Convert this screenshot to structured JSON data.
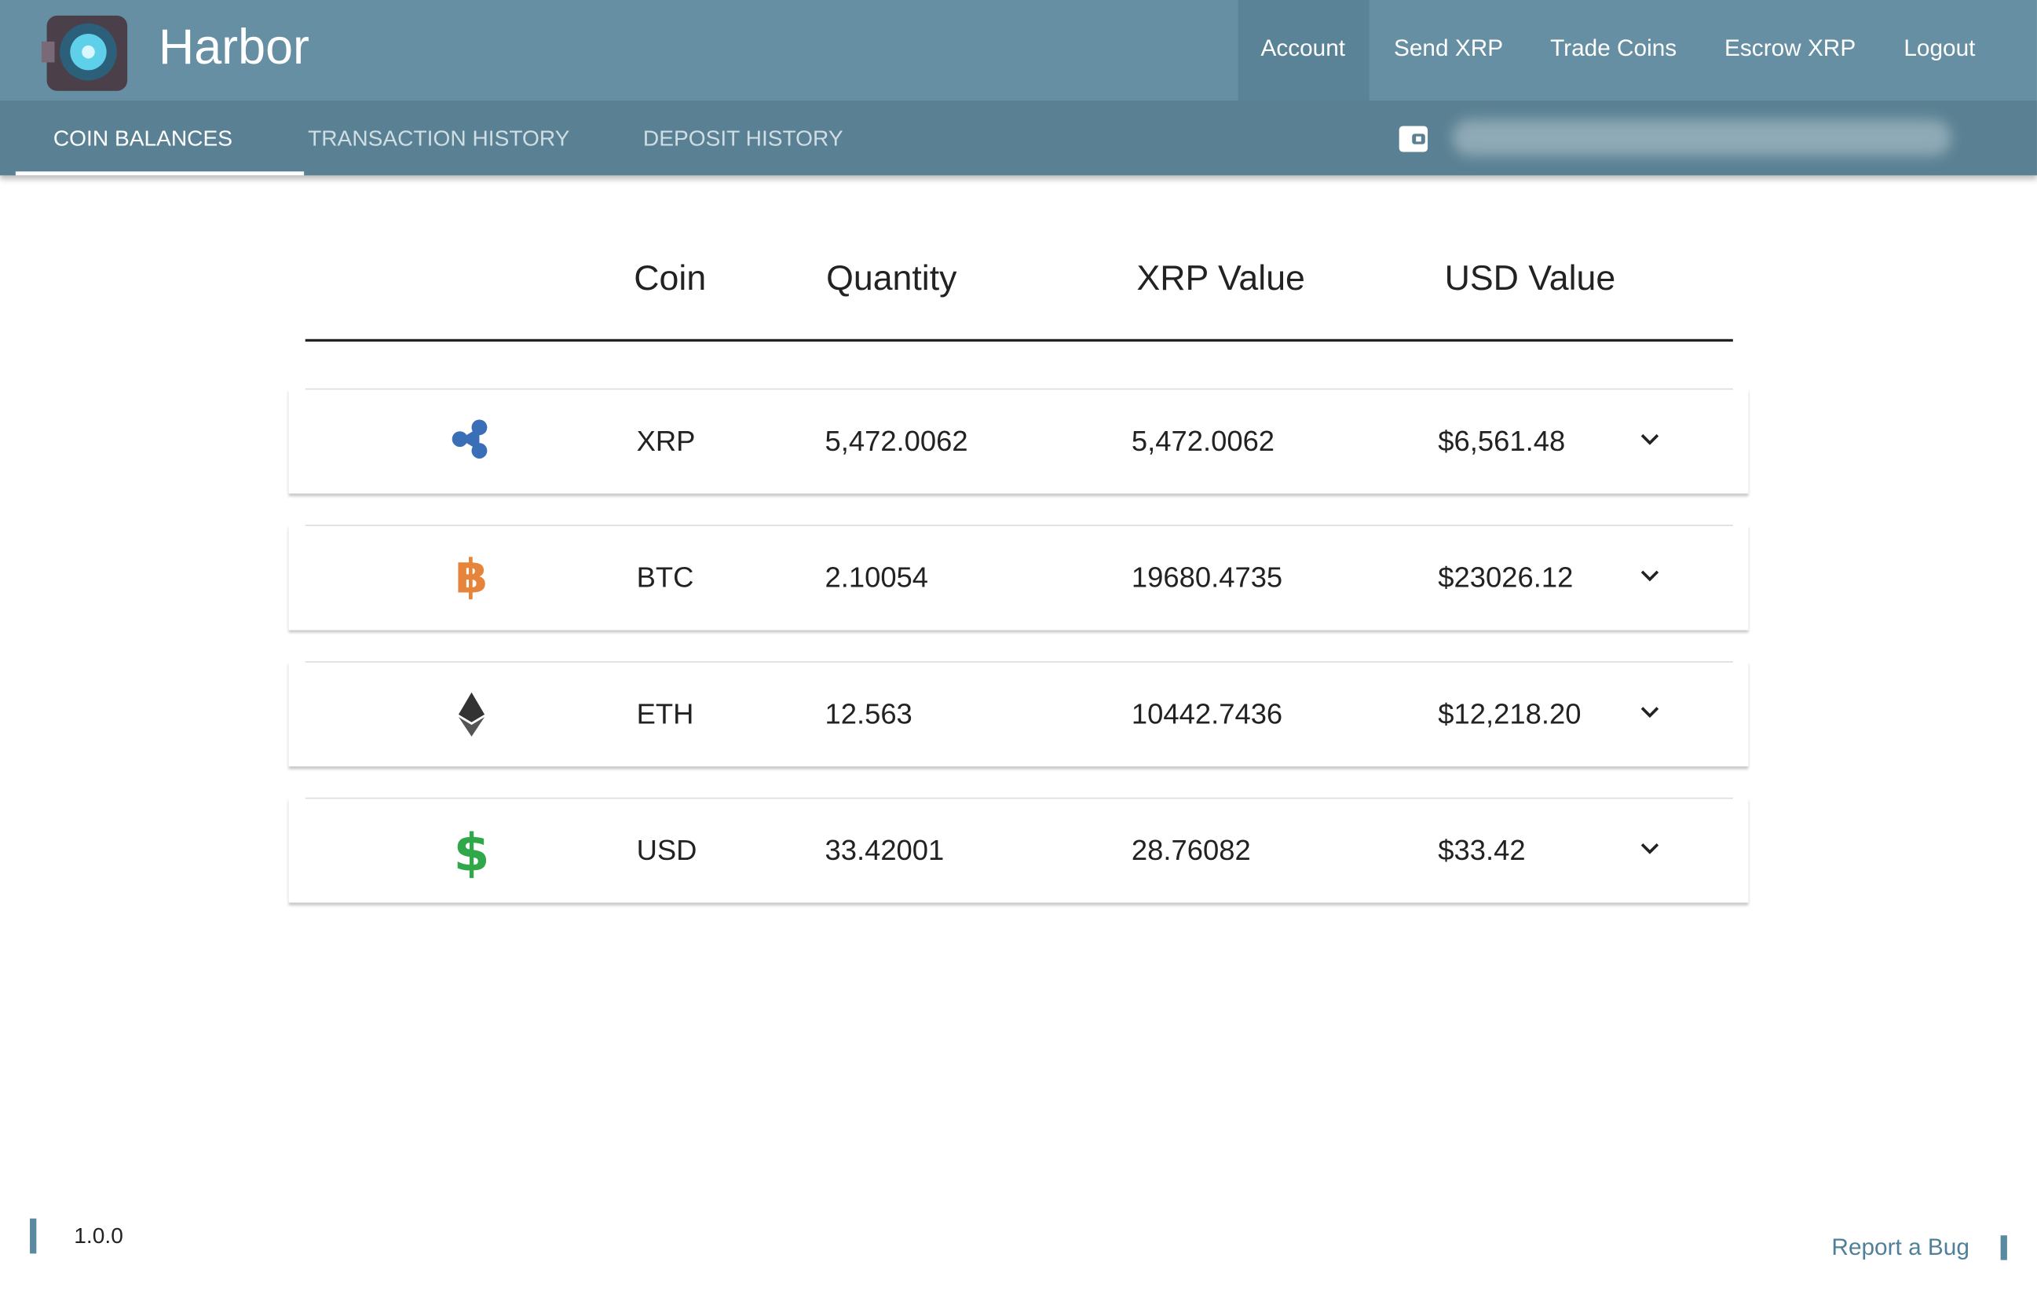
{
  "header": {
    "brand": "Harbor",
    "nav": [
      "Account",
      "Send XRP",
      "Trade Coins",
      "Escrow XRP",
      "Logout"
    ]
  },
  "tabs": [
    "COIN BALANCES",
    "TRANSACTION HISTORY",
    "DEPOSIT HISTORY"
  ],
  "table": {
    "columns": [
      "Coin",
      "Quantity",
      "XRP Value",
      "USD Value"
    ],
    "rows": [
      [
        "XRP",
        "5,472.0062",
        "5,472.0062",
        "$6,561.48"
      ],
      [
        "BTC",
        "2.10054",
        "19680.4735",
        "$23026.12"
      ],
      [
        "ETH",
        "12.563",
        "10442.7436",
        "$12,218.20"
      ],
      [
        "USD",
        "33.42001",
        "28.76082",
        "$33.42"
      ]
    ]
  },
  "footer": {
    "version": "1.0.0",
    "report": "Report a Bug"
  }
}
